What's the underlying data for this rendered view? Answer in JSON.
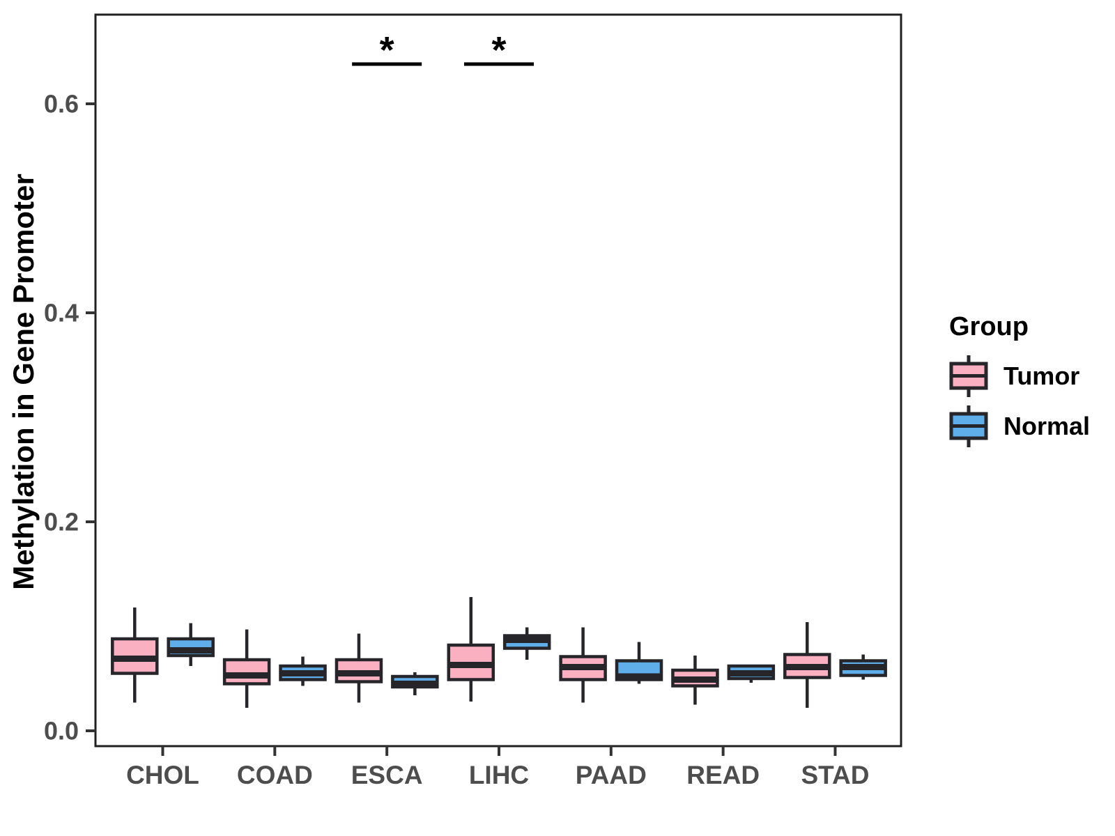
{
  "chart_data": {
    "type": "boxplot",
    "title": "",
    "xlabel": "",
    "ylabel": "Methylation in Gene Promoter",
    "ylim": [
      -0.015,
      0.685
    ],
    "yticks": [
      "0.0",
      "0.2",
      "0.4",
      "0.6"
    ],
    "ytick_values": [
      0.0,
      0.2,
      0.4,
      0.6
    ],
    "grid": "off",
    "categories": [
      "CHOL",
      "COAD",
      "ESCA",
      "LIHC",
      "PAAD",
      "READ",
      "STAD"
    ],
    "legend": {
      "title": "Group",
      "position": "right",
      "items": [
        {
          "label": "Tumor",
          "color": "#FBB0C2"
        },
        {
          "label": "Normal",
          "color": "#5FADE9"
        }
      ]
    },
    "series": [
      {
        "name": "Tumor",
        "fill": "#FBB0C2",
        "boxes": [
          {
            "category": "CHOL",
            "whislo": 0.027,
            "q1": 0.055,
            "med": 0.069,
            "q3": 0.088,
            "whishi": 0.118
          },
          {
            "category": "COAD",
            "whislo": 0.022,
            "q1": 0.045,
            "med": 0.053,
            "q3": 0.068,
            "whishi": 0.097
          },
          {
            "category": "ESCA",
            "whislo": 0.027,
            "q1": 0.047,
            "med": 0.055,
            "q3": 0.068,
            "whishi": 0.093
          },
          {
            "category": "LIHC",
            "whislo": 0.028,
            "q1": 0.049,
            "med": 0.063,
            "q3": 0.082,
            "whishi": 0.128
          },
          {
            "category": "PAAD",
            "whislo": 0.027,
            "q1": 0.049,
            "med": 0.061,
            "q3": 0.071,
            "whishi": 0.099
          },
          {
            "category": "READ",
            "whislo": 0.025,
            "q1": 0.043,
            "med": 0.049,
            "q3": 0.058,
            "whishi": 0.072
          },
          {
            "category": "STAD",
            "whislo": 0.022,
            "q1": 0.051,
            "med": 0.061,
            "q3": 0.073,
            "whishi": 0.104
          }
        ]
      },
      {
        "name": "Normal",
        "fill": "#5FADE9",
        "boxes": [
          {
            "category": "CHOL",
            "whislo": 0.062,
            "q1": 0.072,
            "med": 0.077,
            "q3": 0.088,
            "whishi": 0.103
          },
          {
            "category": "COAD",
            "whislo": 0.043,
            "q1": 0.049,
            "med": 0.055,
            "q3": 0.062,
            "whishi": 0.071
          },
          {
            "category": "ESCA",
            "whislo": 0.034,
            "q1": 0.042,
            "med": 0.045,
            "q3": 0.052,
            "whishi": 0.056
          },
          {
            "category": "LIHC",
            "whislo": 0.068,
            "q1": 0.079,
            "med": 0.087,
            "q3": 0.091,
            "whishi": 0.099
          },
          {
            "category": "PAAD",
            "whislo": 0.045,
            "q1": 0.049,
            "med": 0.052,
            "q3": 0.067,
            "whishi": 0.085
          },
          {
            "category": "READ",
            "whislo": 0.046,
            "q1": 0.05,
            "med": 0.055,
            "q3": 0.062,
            "whishi": 0.063
          },
          {
            "category": "STAD",
            "whislo": 0.049,
            "q1": 0.053,
            "med": 0.061,
            "q3": 0.067,
            "whishi": 0.073
          }
        ]
      }
    ],
    "significance": [
      {
        "category": "ESCA",
        "label": "*",
        "y": 0.638
      },
      {
        "category": "LIHC",
        "label": "*",
        "y": 0.638
      }
    ],
    "colors": {
      "stroke": "#26262A",
      "panel_border": "#202020",
      "tick": "#333333",
      "axis_text": "#4D4D4D",
      "annotation": "#000000"
    }
  }
}
